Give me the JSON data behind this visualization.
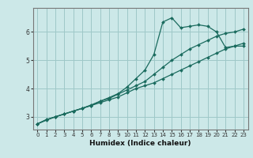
{
  "xlabel": "Humidex (Indice chaleur)",
  "bg_color": "#cce8e8",
  "grid_color": "#9ec8c8",
  "line_color": "#1a6b5e",
  "xlim": [
    -0.5,
    23.5
  ],
  "ylim": [
    2.55,
    6.85
  ],
  "yticks": [
    3,
    4,
    5,
    6
  ],
  "xticks": [
    0,
    1,
    2,
    3,
    4,
    5,
    6,
    7,
    8,
    9,
    10,
    11,
    12,
    13,
    14,
    15,
    16,
    17,
    18,
    19,
    20,
    21,
    22,
    23
  ],
  "line1_x": [
    0,
    1,
    2,
    3,
    4,
    5,
    6,
    7,
    8,
    9,
    10,
    11,
    12,
    13,
    14,
    15,
    16,
    17,
    18,
    19,
    20,
    21,
    22,
    23
  ],
  "line1_y": [
    2.75,
    2.9,
    3.0,
    3.1,
    3.2,
    3.3,
    3.4,
    3.5,
    3.6,
    3.7,
    3.85,
    4.0,
    4.1,
    4.2,
    4.35,
    4.5,
    4.65,
    4.8,
    4.95,
    5.1,
    5.25,
    5.4,
    5.5,
    5.6
  ],
  "line2_x": [
    0,
    1,
    2,
    3,
    4,
    5,
    6,
    7,
    8,
    9,
    10,
    11,
    12,
    13,
    14,
    15,
    16,
    17,
    18,
    19,
    20,
    21,
    22,
    23
  ],
  "line2_y": [
    2.75,
    2.9,
    3.0,
    3.1,
    3.2,
    3.3,
    3.4,
    3.55,
    3.65,
    3.8,
    3.95,
    4.1,
    4.25,
    4.5,
    4.75,
    5.0,
    5.2,
    5.4,
    5.55,
    5.7,
    5.85,
    5.95,
    6.0,
    6.1
  ],
  "line3_x": [
    0,
    1,
    2,
    3,
    4,
    5,
    6,
    7,
    8,
    9,
    10,
    11,
    12,
    13,
    14,
    15,
    16,
    17,
    18,
    19,
    20,
    21,
    22,
    23
  ],
  "line3_y": [
    2.75,
    2.88,
    3.0,
    3.1,
    3.2,
    3.3,
    3.42,
    3.55,
    3.68,
    3.82,
    4.05,
    4.35,
    4.65,
    5.2,
    6.35,
    6.5,
    6.15,
    6.2,
    6.25,
    6.2,
    6.0,
    5.45,
    5.5,
    5.5
  ],
  "xlabel_fontsize": 6.5,
  "tick_fontsize": 5.5,
  "marker_size": 2.0,
  "line_width": 0.9
}
